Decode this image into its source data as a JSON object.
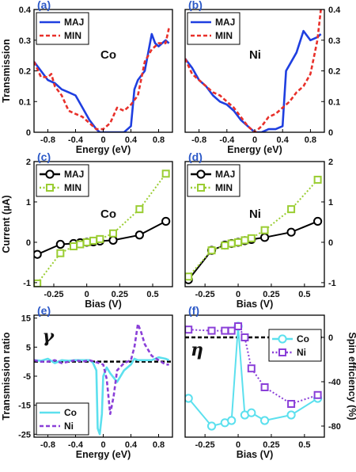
{
  "chart_data": [
    {
      "id": "a",
      "panel_label": "(a)",
      "type": "line",
      "annotation": "Co",
      "xlabel": "Energy (eV)",
      "ylabel": "Transmission",
      "xlim": [
        -1,
        1
      ],
      "ylim": [
        0,
        0.4
      ],
      "xticks": [
        "-0.8",
        "-0.4",
        "0",
        "0.4",
        "0.8"
      ],
      "yticks": [
        "0",
        "0.1",
        "0.2",
        "0.3",
        "0.4"
      ],
      "legend": "top-left",
      "series": [
        {
          "name": "MAJ",
          "color": "#1f3fe0",
          "dash": "solid",
          "x": [
            -1.0,
            -0.9,
            -0.8,
            -0.7,
            -0.6,
            -0.5,
            -0.4,
            -0.3,
            -0.2,
            -0.1,
            -0.05,
            0.0,
            0.1,
            0.2,
            0.3,
            0.4,
            0.45,
            0.5,
            0.6,
            0.7,
            0.75,
            0.8,
            0.9,
            0.95
          ],
          "y": [
            0.23,
            0.2,
            0.17,
            0.16,
            0.14,
            0.13,
            0.12,
            0.08,
            0.04,
            0.01,
            0.0,
            0.0,
            0.0,
            0.0,
            0.0,
            0.02,
            0.14,
            0.17,
            0.2,
            0.32,
            0.29,
            0.28,
            0.3,
            0.29
          ]
        },
        {
          "name": "MIN",
          "color": "#e8302a",
          "dash": "dashed",
          "x": [
            -1.0,
            -0.9,
            -0.8,
            -0.75,
            -0.7,
            -0.6,
            -0.5,
            -0.4,
            -0.3,
            -0.2,
            -0.1,
            0.0,
            0.1,
            0.2,
            0.3,
            0.4,
            0.5,
            0.6,
            0.7,
            0.8,
            0.9,
            0.95
          ],
          "y": [
            0.23,
            0.18,
            0.18,
            0.19,
            0.15,
            0.12,
            0.07,
            0.06,
            0.05,
            0.03,
            0.01,
            0.01,
            0.03,
            0.08,
            0.07,
            0.09,
            0.12,
            0.23,
            0.27,
            0.29,
            0.29,
            0.34
          ]
        }
      ]
    },
    {
      "id": "b",
      "panel_label": "(b)",
      "type": "line",
      "annotation": "Ni",
      "xlabel": "Energy (eV)",
      "ylabel": "",
      "xlim": [
        -1,
        1
      ],
      "ylim": [
        0,
        0.4
      ],
      "xticks": [
        "-0.8",
        "-0.4",
        "0",
        "0.4",
        "0.8"
      ],
      "yticks": [
        "0",
        "0.1",
        "0.2",
        "0.3",
        "0.4"
      ],
      "legend": "top-left",
      "series": [
        {
          "name": "MAJ",
          "color": "#1f3fe0",
          "dash": "solid",
          "x": [
            -1.0,
            -0.9,
            -0.8,
            -0.7,
            -0.6,
            -0.5,
            -0.4,
            -0.3,
            -0.2,
            -0.1,
            0.0,
            0.1,
            0.2,
            0.3,
            0.4,
            0.45,
            0.5,
            0.6,
            0.7,
            0.8,
            0.9,
            0.95
          ],
          "y": [
            0.24,
            0.21,
            0.17,
            0.15,
            0.12,
            0.1,
            0.09,
            0.07,
            0.04,
            0.02,
            0.0,
            0.0,
            0.01,
            0.01,
            0.02,
            0.2,
            0.22,
            0.26,
            0.33,
            0.3,
            0.31,
            0.32
          ]
        },
        {
          "name": "MIN",
          "color": "#e8302a",
          "dash": "dashed",
          "x": [
            -1.0,
            -0.9,
            -0.8,
            -0.7,
            -0.6,
            -0.5,
            -0.4,
            -0.3,
            -0.2,
            -0.1,
            0.0,
            0.1,
            0.2,
            0.3,
            0.4,
            0.5,
            0.6,
            0.7,
            0.8,
            0.9,
            0.95
          ],
          "y": [
            0.24,
            0.19,
            0.17,
            0.15,
            0.13,
            0.12,
            0.1,
            0.08,
            0.05,
            0.02,
            0.0,
            0.02,
            0.05,
            0.06,
            0.08,
            0.1,
            0.13,
            0.15,
            0.19,
            0.3,
            0.4
          ]
        }
      ]
    },
    {
      "id": "c",
      "panel_label": "(c)",
      "type": "line",
      "annotation": "Co",
      "xlabel": "Bias (V)",
      "ylabel": "Current (µA)",
      "xlim": [
        -0.4,
        0.65
      ],
      "ylim": [
        -1.1,
        2
      ],
      "xticks": [
        "-0.25",
        "0",
        "0.25",
        "0.5"
      ],
      "yticks": [
        "-1",
        "0",
        "1",
        "2"
      ],
      "legend": "top-left",
      "series": [
        {
          "name": "MAJ",
          "color": "#000000",
          "marker": "circle",
          "dash": "solid",
          "x": [
            -0.375,
            -0.2,
            -0.1,
            -0.05,
            0.0,
            0.05,
            0.1,
            0.2,
            0.4,
            0.6
          ],
          "y": [
            -0.3,
            -0.05,
            -0.03,
            -0.01,
            0.0,
            0.01,
            0.03,
            0.05,
            0.18,
            0.52
          ]
        },
        {
          "name": "MIN",
          "color": "#9acd32",
          "marker": "square",
          "dash": "dotted",
          "x": [
            -0.375,
            -0.2,
            -0.1,
            -0.05,
            0.0,
            0.05,
            0.1,
            0.2,
            0.4,
            0.6
          ],
          "y": [
            -1.02,
            -0.27,
            -0.1,
            -0.05,
            0.0,
            0.04,
            0.08,
            0.22,
            0.82,
            1.7
          ]
        }
      ]
    },
    {
      "id": "d",
      "panel_label": "(d)",
      "type": "line",
      "annotation": "Ni",
      "xlabel": "Bias (V)",
      "ylabel": "",
      "xlim": [
        -0.4,
        0.65
      ],
      "ylim": [
        -1.1,
        2
      ],
      "xticks": [
        "-0.25",
        "0",
        "0.25",
        "0.5"
      ],
      "yticks": [
        "-1",
        "0",
        "1",
        "2"
      ],
      "legend": "top-left",
      "series": [
        {
          "name": "MAJ",
          "color": "#000000",
          "marker": "circle",
          "dash": "solid",
          "x": [
            -0.375,
            -0.2,
            -0.1,
            -0.05,
            0.0,
            0.05,
            0.1,
            0.2,
            0.4,
            0.6
          ],
          "y": [
            -0.93,
            -0.2,
            -0.07,
            -0.03,
            0.0,
            0.04,
            0.07,
            0.12,
            0.25,
            0.52
          ]
        },
        {
          "name": "MIN",
          "color": "#9acd32",
          "marker": "square",
          "dash": "dotted",
          "x": [
            -0.375,
            -0.2,
            -0.1,
            -0.05,
            0.0,
            0.05,
            0.1,
            0.2,
            0.4,
            0.6
          ],
          "y": [
            -0.85,
            -0.2,
            -0.08,
            -0.03,
            0.0,
            0.05,
            0.1,
            0.3,
            0.82,
            1.55
          ]
        }
      ]
    },
    {
      "id": "e",
      "panel_label": "(e)",
      "type": "line",
      "annotation": "γ",
      "xlabel": "Energy (eV)",
      "ylabel": "Transmission ratio",
      "xlim": [
        -1,
        1
      ],
      "ylim": [
        -26,
        16
      ],
      "xticks": [
        "-0.8",
        "-0.4",
        "0",
        "0.4",
        "0.8"
      ],
      "yticks": [
        "-25",
        "-15",
        "-5",
        "5",
        "15"
      ],
      "reference_line": 0,
      "legend": "bottom-left",
      "series": [
        {
          "name": "Co",
          "color": "#5ce0ee",
          "dash": "solid",
          "x": [
            -1.0,
            -0.9,
            -0.8,
            -0.7,
            -0.6,
            -0.5,
            -0.4,
            -0.3,
            -0.2,
            -0.15,
            -0.1,
            -0.08,
            -0.05,
            -0.02,
            0.0,
            0.05,
            0.1,
            0.2,
            0.3,
            0.4,
            0.45,
            0.5,
            0.6,
            0.7,
            0.8,
            0.9,
            0.95
          ],
          "y": [
            0.5,
            0.3,
            1.0,
            -0.5,
            0.5,
            0.3,
            0.5,
            0.5,
            0.5,
            -0.3,
            -3.0,
            -23.0,
            -25.0,
            -18.0,
            -5.0,
            -2.0,
            -4.0,
            -7.0,
            -3.0,
            -1.0,
            1.0,
            0.5,
            0.5,
            0.5,
            1.5,
            1.0,
            0.5
          ]
        },
        {
          "name": "Ni",
          "color": "#8a3fd8",
          "dash": "dashed",
          "x": [
            -1.0,
            -0.9,
            -0.8,
            -0.7,
            -0.6,
            -0.5,
            -0.4,
            -0.3,
            -0.2,
            -0.1,
            0.0,
            0.05,
            0.1,
            0.15,
            0.2,
            0.3,
            0.4,
            0.45,
            0.5,
            0.55,
            0.6,
            0.7,
            0.8,
            0.9,
            0.95
          ],
          "y": [
            0.5,
            0.0,
            0.0,
            0.5,
            -0.5,
            0.0,
            0.5,
            0.0,
            0.5,
            -0.2,
            -1.0,
            -6.0,
            -18.0,
            -12.0,
            -3.0,
            -0.5,
            0.5,
            5.0,
            13.0,
            10.0,
            6.0,
            2.0,
            0.5,
            -1.0,
            -1.0
          ]
        }
      ]
    },
    {
      "id": "f",
      "panel_label": "(f)",
      "type": "line",
      "annotation": "η",
      "xlabel": "Bias (V)",
      "ylabel": "Spin efficiency (%)",
      "xlim": [
        -0.4,
        0.65
      ],
      "ylim": [
        -90,
        20
      ],
      "xticks": [
        "-0.25",
        "0",
        "0.25",
        "0.5"
      ],
      "yticks": [
        "-80",
        "-40",
        "0"
      ],
      "reference_line": 0,
      "legend": "top-right",
      "series": [
        {
          "name": "Co",
          "color": "#5ce0ee",
          "marker": "circle",
          "dash": "solid",
          "x": [
            -0.375,
            -0.2,
            -0.1,
            -0.05,
            0.0,
            0.05,
            0.1,
            0.2,
            0.4,
            0.6
          ],
          "y": [
            -55,
            -80,
            -77,
            -75,
            10,
            -70,
            -68,
            -75,
            -70,
            -55
          ]
        },
        {
          "name": "Ni",
          "color": "#8a3fd8",
          "marker": "square",
          "dash": "dotted",
          "x": [
            -0.375,
            -0.2,
            -0.1,
            -0.05,
            0.0,
            0.05,
            0.1,
            0.2,
            0.4,
            0.6
          ],
          "y": [
            7,
            6,
            6,
            6,
            10,
            0,
            -28,
            -45,
            -60,
            -52
          ]
        }
      ]
    }
  ]
}
